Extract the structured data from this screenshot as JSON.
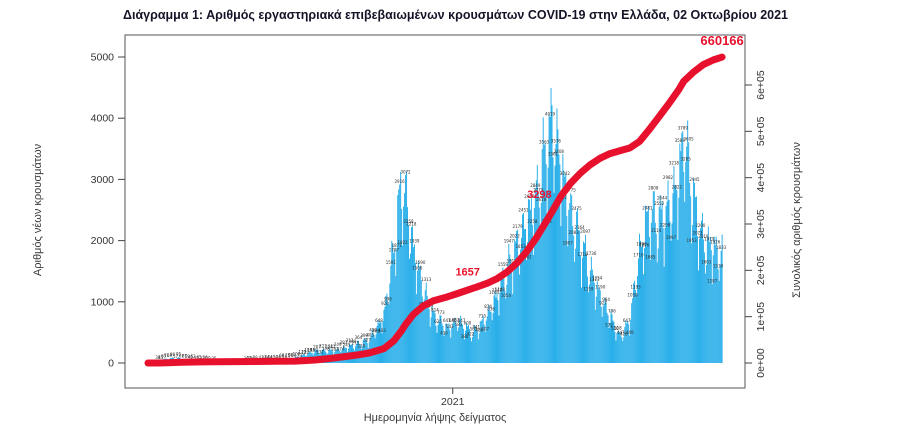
{
  "title": "Διάγραμμα 1: Αριθμός εργαστηριακά επιβεβαιωμένων κρουσμάτων COVID-19 στην Ελλάδα, 02 Οκτωβρίου 2021",
  "chart_data": {
    "type": "bar",
    "title": "Διάγραμμα 1: Αριθμός εργαστηριακά επιβεβαιωμένων κρουσμάτων COVID-19 στην Ελλάδα, 02 Οκτωβρίου 2021",
    "xlabel": "Ημερομηνία λήψης δείγματος",
    "x_ticks": [
      {
        "label": "2021",
        "day": 310
      }
    ],
    "left_axis": {
      "label": "Αριθμός νέων κρουσμάτων",
      "ticks": [
        0,
        1000,
        2000,
        3000,
        4000,
        5000
      ],
      "range": [
        0,
        5000
      ]
    },
    "right_axis": {
      "label": "Συνολικός αριθμός κρουσμάτων",
      "ticks": [
        "0e+00",
        "1e+05",
        "2e+05",
        "3e+05",
        "4e+05",
        "5e+05",
        "6e+05"
      ],
      "tick_values": [
        0,
        100000,
        200000,
        300000,
        400000,
        500000,
        600000
      ],
      "range": [
        0,
        600000
      ]
    },
    "colors": {
      "bars": "#25ade9",
      "line": "#e8112d",
      "bar_labels": "#2b2b2b",
      "axis": "#444444"
    },
    "legend": "none",
    "grid": false,
    "series": [
      {
        "name": "daily-new-cases",
        "type": "bar",
        "control_points": {
          "day": [
            0,
            10,
            20,
            30,
            40,
            55,
            70,
            90,
            110,
            130,
            150,
            170,
            190,
            210,
            225,
            240,
            250,
            258,
            262,
            270,
            280,
            290,
            305,
            315,
            330,
            335,
            345,
            355,
            365,
            375,
            385,
            395,
            405,
            412,
            420,
            430,
            440,
            450,
            460,
            470,
            480,
            490,
            500,
            510,
            520,
            530,
            540,
            545,
            555,
            565,
            575,
            584
          ],
          "value": [
            5,
            45,
            90,
            100,
            65,
            45,
            25,
            18,
            40,
            55,
            110,
            240,
            250,
            360,
            460,
            950,
            2300,
            3600,
            3400,
            2300,
            1500,
            950,
            700,
            850,
            600,
            680,
            950,
            1350,
            1850,
            2350,
            2850,
            3350,
            4350,
            4850,
            3950,
            3050,
            2450,
            1850,
            1350,
            950,
            520,
            850,
            2250,
            3050,
            2850,
            3150,
            3700,
            4650,
            3250,
            2450,
            2350,
            2150
          ]
        }
      },
      {
        "name": "cumulative-cases",
        "type": "line",
        "control_points": {
          "day": [
            0,
            10,
            20,
            30,
            40,
            55,
            70,
            90,
            110,
            130,
            150,
            170,
            190,
            210,
            225,
            240,
            250,
            258,
            262,
            270,
            280,
            290,
            305,
            315,
            330,
            335,
            345,
            355,
            365,
            375,
            385,
            395,
            405,
            412,
            420,
            430,
            440,
            450,
            460,
            470,
            480,
            490,
            500,
            510,
            520,
            530,
            540,
            545,
            555,
            565,
            575,
            584
          ],
          "value": [
            3,
            100,
            450,
            1300,
            1900,
            2400,
            2700,
            2950,
            3300,
            3600,
            4200,
            6500,
            11000,
            16500,
            21500,
            31000,
            48000,
            70000,
            83000,
            105000,
            123000,
            134000,
            143000,
            150000,
            161000,
            164500,
            172000,
            182000,
            196000,
            215000,
            240000,
            270000,
            305000,
            330000,
            360000,
            388000,
            410000,
            428000,
            442000,
            452000,
            458000,
            464000,
            478000,
            504000,
            532000,
            560000,
            590000,
            608000,
            628000,
            644000,
            654000,
            660166
          ]
        }
      }
    ],
    "annotations": [
      {
        "text": "660166",
        "day": 584,
        "value": 660166,
        "size": 13
      },
      {
        "text": "3298",
        "day": 400,
        "value": 330000,
        "size": 11
      },
      {
        "text": "1657",
        "day": 327,
        "value": 163000,
        "size": 11
      }
    ]
  }
}
